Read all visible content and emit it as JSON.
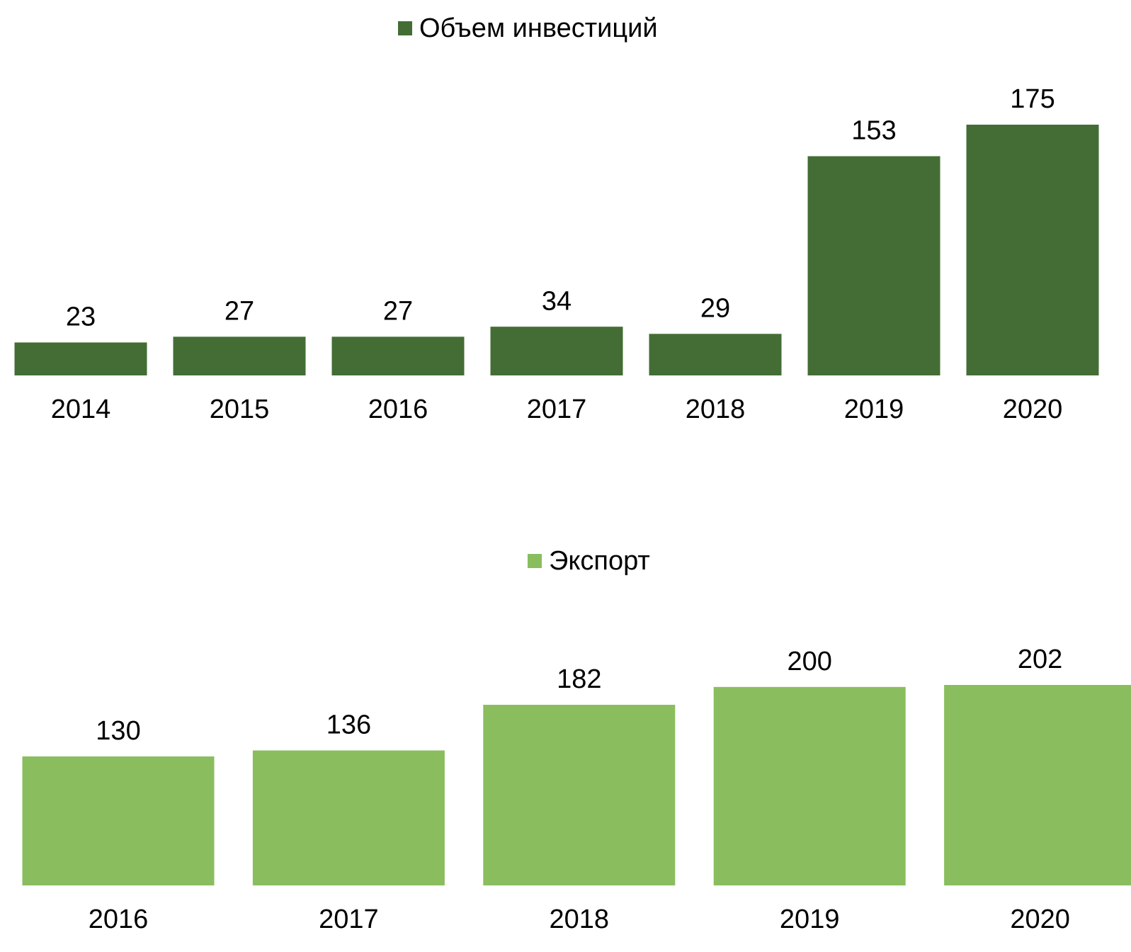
{
  "chart_data": [
    {
      "type": "bar",
      "categories": [
        "2014",
        "2015",
        "2016",
        "2017",
        "2018",
        "2019",
        "2020"
      ],
      "series": [
        {
          "name": "Объем инвестиций",
          "color": "#436d34",
          "values": [
            23,
            27,
            27,
            34,
            29,
            153,
            175
          ]
        }
      ]
    },
    {
      "type": "bar",
      "categories": [
        "2016",
        "2017",
        "2018",
        "2019",
        "2020"
      ],
      "series": [
        {
          "name": "Экспорт",
          "color": "#8abd5e",
          "values": [
            130,
            136,
            182,
            200,
            202
          ]
        }
      ]
    }
  ]
}
